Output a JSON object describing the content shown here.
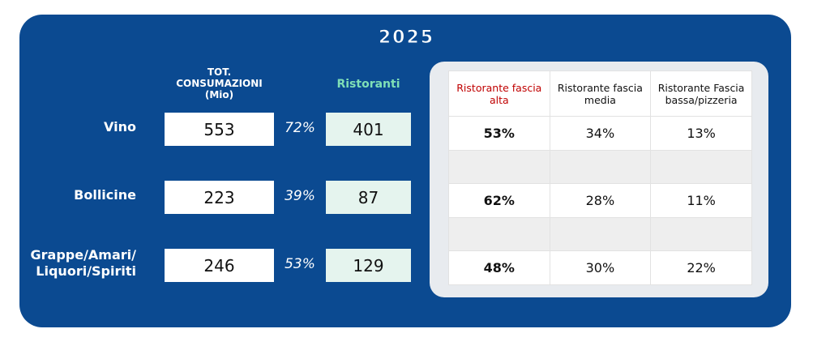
{
  "title": "2025",
  "left": {
    "total_header": [
      "TOT.",
      "CONSUMAZIONI",
      "(Mio)"
    ],
    "ristoranti_header": "Ristoranti",
    "rows": [
      {
        "label": [
          "Vino"
        ],
        "total": 553,
        "share": "72%",
        "ristoranti": 401
      },
      {
        "label": [
          "Bollicine"
        ],
        "total": 223,
        "share": "39%",
        "ristoranti": 87
      },
      {
        "label": [
          "Grappe/Amari/",
          "Liquori/Spiriti"
        ],
        "total": 246,
        "share": "53%",
        "ristoranti": 129
      }
    ]
  },
  "table": {
    "headers": [
      "Ristorante fascia alta",
      "Ristorante fascia media",
      "Ristorante Fascia bassa/pizzeria"
    ],
    "rows": [
      [
        "53%",
        "34%",
        "13%"
      ],
      [
        "62%",
        "28%",
        "11%"
      ],
      [
        "48%",
        "30%",
        "22%"
      ]
    ]
  }
}
